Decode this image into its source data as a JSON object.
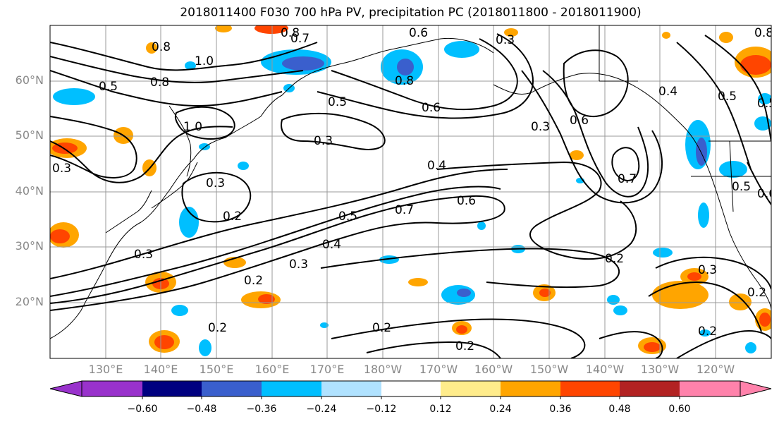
{
  "title": "2018011400 F030 700 hPa PV, precipitation PC (2018011800 - 2018011900)",
  "lat_labels": [
    "60°N",
    "50°N",
    "40°N",
    "30°N",
    "20°N"
  ],
  "lon_labels": [
    "130°E",
    "140°E",
    "150°E",
    "160°E",
    "170°E",
    "180°W",
    "170°W",
    "160°W",
    "150°W",
    "140°W",
    "130°W",
    "120°W"
  ],
  "contour_labels": [
    "0.8",
    "1.0",
    "0.8",
    "0.5",
    "1.0",
    "0.8",
    "0.7",
    "0.8",
    "0.6",
    "0.5",
    "0.3",
    "0.3",
    "0.3",
    "0.2",
    "0.3",
    "0.2",
    "0.3",
    "0.4",
    "0.5",
    "0.7",
    "0.6",
    "0.4",
    "0.2",
    "0.3",
    "0.2",
    "0.2",
    "0.2",
    "0.7",
    "0.2",
    "0.3",
    "0.2",
    "0.5",
    "0.4",
    "0.5",
    "0.6",
    "0.5",
    "0.6",
    "0.3",
    "0.6",
    "0.8"
  ],
  "colorbar": {
    "ticks": [
      "−0.60",
      "−0.48",
      "−0.36",
      "−0.24",
      "−0.12",
      "0.12",
      "0.24",
      "0.36",
      "0.48",
      "0.60"
    ],
    "colors": [
      "#9932cc",
      "#000080",
      "#3a5fcd",
      "#00bfff",
      "#b0e2ff",
      "#ffffff",
      "#ffec8b",
      "#ffa500",
      "#ff4500",
      "#b22222",
      "#ff82ab"
    ]
  }
}
